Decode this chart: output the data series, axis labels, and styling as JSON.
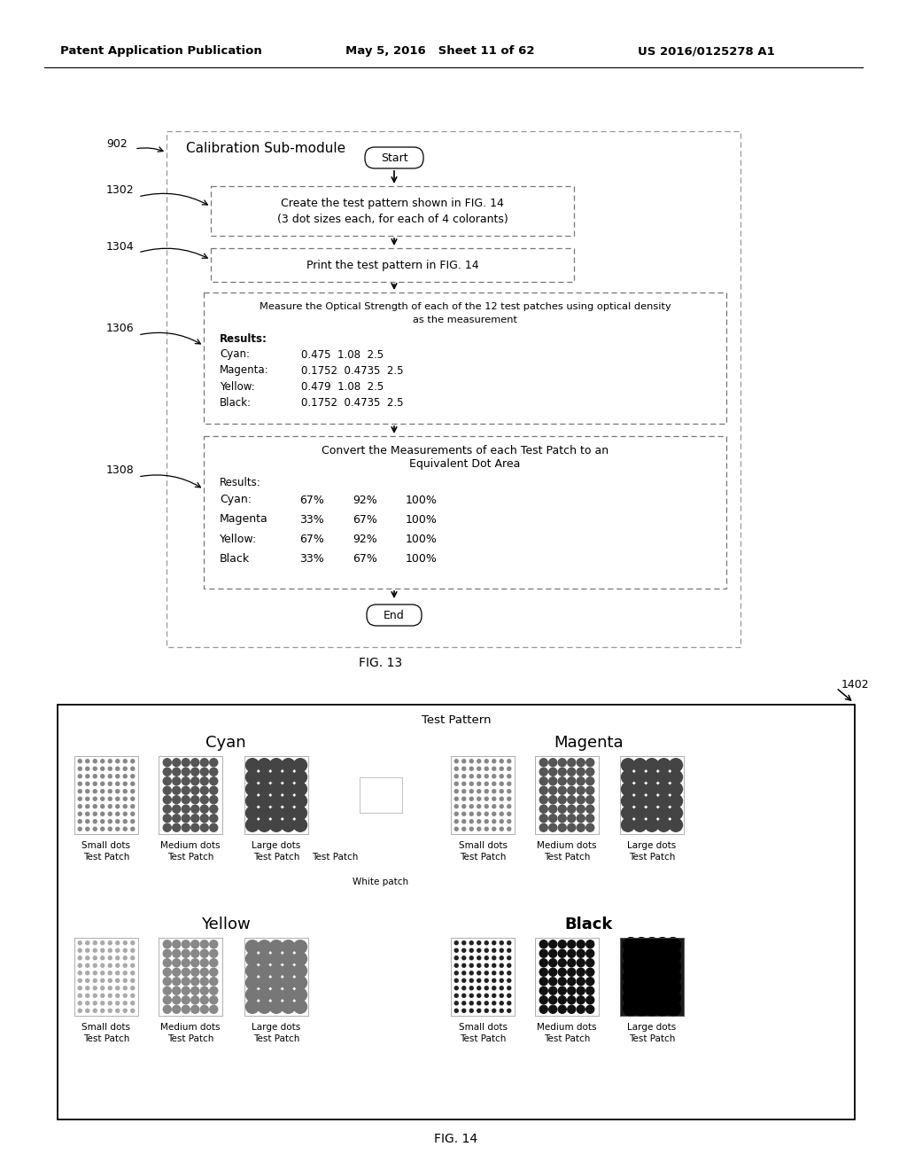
{
  "header_left": "Patent Application Publication",
  "header_mid": "May 5, 2016   Sheet 11 of 62",
  "header_right": "US 2016/0125278 A1",
  "fig13_label": "FIG. 13",
  "fig14_label": "FIG. 14",
  "calib_title": "Calibration Sub-module",
  "start_label": "Start",
  "end_label": "End",
  "label1402": "1402",
  "test_pattern_title": "Test Pattern",
  "white_patch_label": "White patch",
  "bg_color": "#ffffff"
}
